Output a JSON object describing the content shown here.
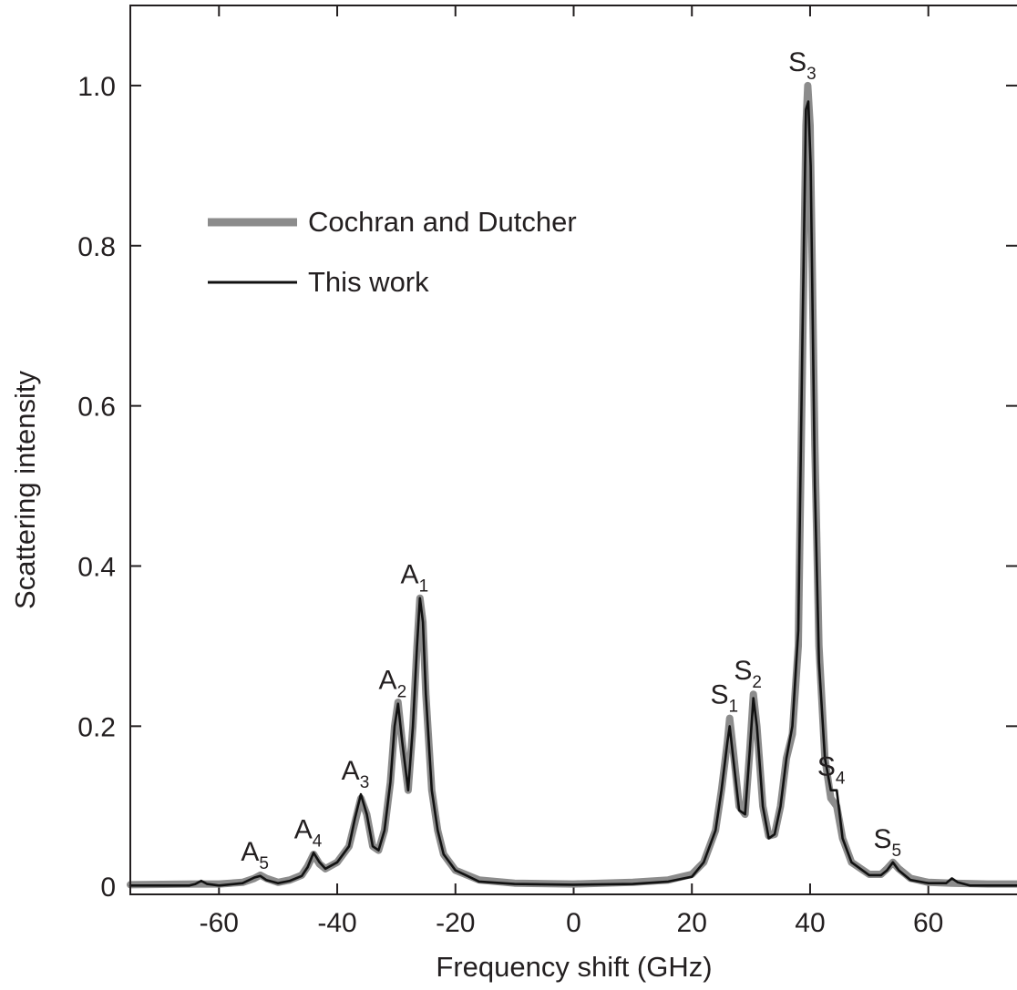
{
  "chart_data": {
    "type": "line",
    "xlabel": "Frequency shift (GHz)",
    "ylabel": "Scattering intensity",
    "xlim": [
      -75,
      75
    ],
    "ylim": [
      -0.01,
      1.1
    ],
    "x_ticks": [
      -60,
      -40,
      -20,
      0,
      20,
      40,
      60
    ],
    "y_ticks": [
      0,
      0.2,
      0.4,
      0.6,
      0.8,
      1.0
    ],
    "x_tick_labels": [
      "-60",
      "-40",
      "-20",
      "0",
      "20",
      "40",
      "60"
    ],
    "y_tick_labels": [
      "0",
      "0.2",
      "0.4",
      "0.6",
      "0.8",
      "1.0"
    ],
    "grid": false,
    "legend_position": "upper-left",
    "series": [
      {
        "name": "Cochran and Dutcher",
        "color": "#8c8c8c",
        "style": "thick",
        "points": [
          [
            -75,
            0.002
          ],
          [
            -64,
            0.003
          ],
          [
            -60,
            0.003
          ],
          [
            -56,
            0.005
          ],
          [
            -54,
            0.01
          ],
          [
            -53,
            0.014
          ],
          [
            -52,
            0.01
          ],
          [
            -50,
            0.005
          ],
          [
            -48,
            0.008
          ],
          [
            -46,
            0.014
          ],
          [
            -45,
            0.025
          ],
          [
            -44,
            0.04
          ],
          [
            -43,
            0.028
          ],
          [
            -42,
            0.022
          ],
          [
            -40,
            0.03
          ],
          [
            -38,
            0.05
          ],
          [
            -37,
            0.08
          ],
          [
            -36,
            0.11
          ],
          [
            -35,
            0.09
          ],
          [
            -34,
            0.05
          ],
          [
            -33,
            0.045
          ],
          [
            -32,
            0.07
          ],
          [
            -31,
            0.13
          ],
          [
            -30.3,
            0.2
          ],
          [
            -29.7,
            0.23
          ],
          [
            -29,
            0.18
          ],
          [
            -28,
            0.12
          ],
          [
            -27.2,
            0.2
          ],
          [
            -26.5,
            0.3
          ],
          [
            -26,
            0.36
          ],
          [
            -25.5,
            0.33
          ],
          [
            -25,
            0.24
          ],
          [
            -24,
            0.12
          ],
          [
            -23,
            0.07
          ],
          [
            -22,
            0.04
          ],
          [
            -20,
            0.02
          ],
          [
            -16,
            0.008
          ],
          [
            -10,
            0.004
          ],
          [
            0,
            0.003
          ],
          [
            10,
            0.005
          ],
          [
            16,
            0.008
          ],
          [
            20,
            0.015
          ],
          [
            22,
            0.03
          ],
          [
            24,
            0.07
          ],
          [
            25,
            0.12
          ],
          [
            26,
            0.18
          ],
          [
            26.4,
            0.21
          ],
          [
            27,
            0.17
          ],
          [
            28,
            0.1
          ],
          [
            29,
            0.09
          ],
          [
            29.8,
            0.17
          ],
          [
            30.4,
            0.24
          ],
          [
            31,
            0.2
          ],
          [
            32,
            0.1
          ],
          [
            33,
            0.063
          ],
          [
            34,
            0.065
          ],
          [
            35,
            0.1
          ],
          [
            36,
            0.16
          ],
          [
            37,
            0.19
          ],
          [
            38,
            0.3
          ],
          [
            38.7,
            0.65
          ],
          [
            39.3,
            0.95
          ],
          [
            39.6,
            1.0
          ],
          [
            40,
            0.95
          ],
          [
            40.8,
            0.55
          ],
          [
            41.5,
            0.3
          ],
          [
            42.5,
            0.16
          ],
          [
            43.5,
            0.11
          ],
          [
            44.5,
            0.1
          ],
          [
            45.5,
            0.06
          ],
          [
            47,
            0.03
          ],
          [
            50,
            0.015
          ],
          [
            52,
            0.015
          ],
          [
            53,
            0.022
          ],
          [
            54,
            0.03
          ],
          [
            55,
            0.022
          ],
          [
            57,
            0.01
          ],
          [
            60,
            0.005
          ],
          [
            64,
            0.004
          ],
          [
            70,
            0.003
          ],
          [
            75,
            0.003
          ]
        ]
      },
      {
        "name": "This work",
        "color": "#111111",
        "style": "thin",
        "points": [
          [
            -75,
            0.001
          ],
          [
            -65,
            0.001
          ],
          [
            -64,
            0.003
          ],
          [
            -63,
            0.007
          ],
          [
            -62,
            0.003
          ],
          [
            -60,
            0.001
          ],
          [
            -56,
            0.004
          ],
          [
            -54,
            0.011
          ],
          [
            -53,
            0.013
          ],
          [
            -52,
            0.008
          ],
          [
            -50,
            0.004
          ],
          [
            -48,
            0.007
          ],
          [
            -46,
            0.013
          ],
          [
            -45,
            0.024
          ],
          [
            -44,
            0.042
          ],
          [
            -43,
            0.03
          ],
          [
            -42,
            0.022
          ],
          [
            -40,
            0.03
          ],
          [
            -38,
            0.05
          ],
          [
            -37,
            0.085
          ],
          [
            -36,
            0.115
          ],
          [
            -35,
            0.09
          ],
          [
            -34,
            0.05
          ],
          [
            -33,
            0.045
          ],
          [
            -32,
            0.07
          ],
          [
            -31,
            0.13
          ],
          [
            -30.3,
            0.2
          ],
          [
            -29.7,
            0.228
          ],
          [
            -29,
            0.18
          ],
          [
            -28,
            0.12
          ],
          [
            -27.2,
            0.2
          ],
          [
            -26.5,
            0.3
          ],
          [
            -26,
            0.36
          ],
          [
            -25.5,
            0.33
          ],
          [
            -25,
            0.24
          ],
          [
            -24,
            0.12
          ],
          [
            -23,
            0.07
          ],
          [
            -22,
            0.04
          ],
          [
            -20,
            0.02
          ],
          [
            -16,
            0.006
          ],
          [
            -10,
            0.003
          ],
          [
            0,
            0.002
          ],
          [
            10,
            0.003
          ],
          [
            16,
            0.006
          ],
          [
            20,
            0.012
          ],
          [
            22,
            0.03
          ],
          [
            24,
            0.07
          ],
          [
            25,
            0.12
          ],
          [
            26,
            0.18
          ],
          [
            26.4,
            0.2
          ],
          [
            27,
            0.16
          ],
          [
            28,
            0.095
          ],
          [
            29,
            0.09
          ],
          [
            29.8,
            0.17
          ],
          [
            30.4,
            0.235
          ],
          [
            31,
            0.2
          ],
          [
            32,
            0.1
          ],
          [
            33,
            0.06
          ],
          [
            34,
            0.065
          ],
          [
            35,
            0.1
          ],
          [
            36,
            0.16
          ],
          [
            37,
            0.2
          ],
          [
            38,
            0.32
          ],
          [
            38.7,
            0.68
          ],
          [
            39.3,
            0.97
          ],
          [
            39.7,
            0.98
          ],
          [
            40.1,
            0.9
          ],
          [
            40.8,
            0.5
          ],
          [
            41.5,
            0.28
          ],
          [
            42.5,
            0.16
          ],
          [
            43.5,
            0.12
          ],
          [
            44.5,
            0.12
          ],
          [
            45.5,
            0.06
          ],
          [
            47,
            0.03
          ],
          [
            50,
            0.014
          ],
          [
            52,
            0.014
          ],
          [
            53,
            0.02
          ],
          [
            54,
            0.03
          ],
          [
            55,
            0.02
          ],
          [
            57,
            0.008
          ],
          [
            60,
            0.004
          ],
          [
            63,
            0.004
          ],
          [
            64,
            0.01
          ],
          [
            65,
            0.005
          ],
          [
            67,
            0.001
          ],
          [
            70,
            0.001
          ],
          [
            75,
            0.001
          ]
        ]
      }
    ],
    "annotations": [
      {
        "main": "A",
        "sub": "1",
        "x": -26,
        "y": 0.36
      },
      {
        "main": "A",
        "sub": "2",
        "x": -29.7,
        "y": 0.228
      },
      {
        "main": "A",
        "sub": "3",
        "x": -36,
        "y": 0.115
      },
      {
        "main": "A",
        "sub": "4",
        "x": -44,
        "y": 0.042
      },
      {
        "main": "A",
        "sub": "5",
        "x": -53,
        "y": 0.014
      },
      {
        "main": "S",
        "sub": "1",
        "x": 26.4,
        "y": 0.21
      },
      {
        "main": "S",
        "sub": "2",
        "x": 30.4,
        "y": 0.24
      },
      {
        "main": "S",
        "sub": "3",
        "x": 39.6,
        "y": 1.0
      },
      {
        "main": "S",
        "sub": "4",
        "x": 44.5,
        "y": 0.12
      },
      {
        "main": "S",
        "sub": "5",
        "x": 54,
        "y": 0.03
      }
    ]
  }
}
